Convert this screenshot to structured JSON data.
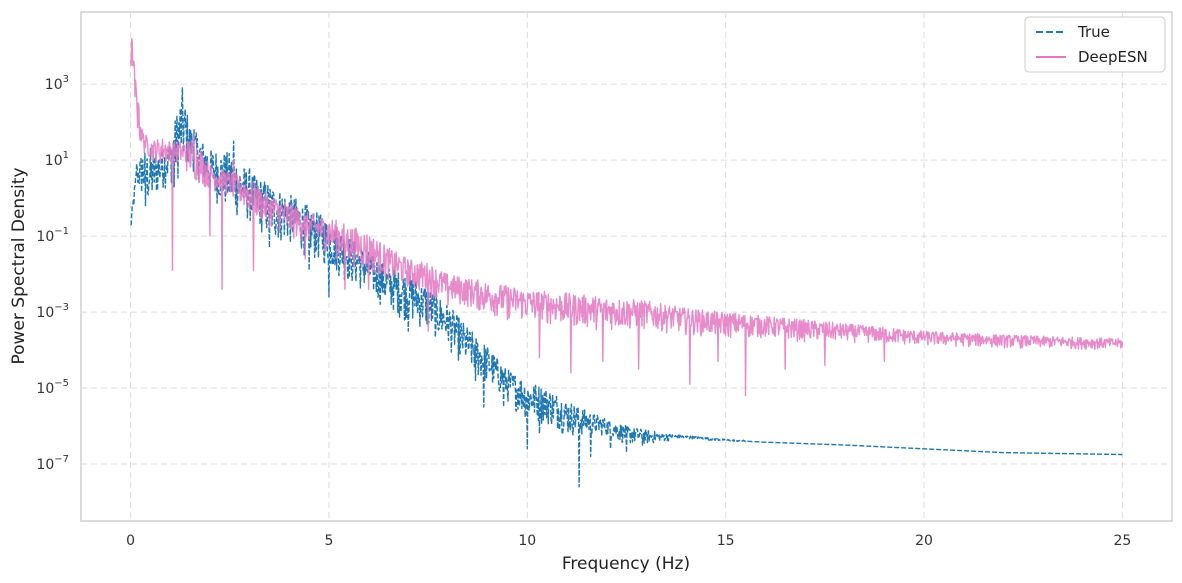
{
  "chart_data": {
    "type": "line",
    "title": "",
    "xlabel": "Frequency (Hz)",
    "ylabel": "Power Spectral Density",
    "xscale": "linear",
    "yscale": "log",
    "xlim": [
      -1.25,
      26.25
    ],
    "ylim_log10": [
      -8.5,
      4.9
    ],
    "grid": true,
    "legend_position": "top-right",
    "x_ticks": [
      0,
      5,
      10,
      15,
      20,
      25
    ],
    "x_tick_labels": [
      "0",
      "5",
      "10",
      "15",
      "20",
      "25"
    ],
    "y_ticks_log10": [
      3,
      1,
      -1,
      -3,
      -5,
      -7
    ],
    "y_tick_labels": [
      {
        "base": "10",
        "exp": "3"
      },
      {
        "base": "10",
        "exp": "1"
      },
      {
        "base": "10",
        "exp": "−1"
      },
      {
        "base": "10",
        "exp": "−3"
      },
      {
        "base": "10",
        "exp": "−5"
      },
      {
        "base": "10",
        "exp": "−7"
      }
    ],
    "series": [
      {
        "name": "True",
        "color": "#1f77b4",
        "style": "dashed",
        "envelope": {
          "x": [
            0.0,
            0.15,
            0.3,
            0.5,
            0.8,
            1.0,
            1.3,
            1.5,
            2.0,
            2.5,
            3.0,
            3.5,
            4.0,
            4.5,
            5.0,
            5.5,
            6.0,
            6.5,
            7.0,
            7.5,
            8.0,
            8.5,
            9.0,
            9.5,
            10.0,
            10.5,
            11.0,
            11.5,
            12.0,
            12.5,
            13.0,
            13.5,
            14.0,
            15.0,
            16.0,
            18.0,
            20.0,
            22.0,
            25.0
          ],
          "log10_upper": [
            -0.6,
            0.8,
            1.3,
            1.2,
            1.3,
            1.5,
            2.9,
            1.9,
            1.3,
            1.2,
            0.7,
            0.4,
            0.1,
            -0.2,
            -0.6,
            -1.0,
            -1.4,
            -1.8,
            -2.0,
            -2.3,
            -2.8,
            -3.4,
            -3.9,
            -4.5,
            -4.8,
            -5.0,
            -5.3,
            -5.6,
            -5.8,
            -6.0,
            -6.1,
            -6.2,
            -6.25,
            -6.35,
            -6.4,
            -6.5,
            -6.6,
            -6.7,
            -6.75
          ],
          "log10_lower": [
            -1.0,
            0.3,
            -0.2,
            -0.4,
            0.2,
            0.3,
            0.5,
            0.8,
            0.0,
            -0.5,
            -0.7,
            -1.2,
            -1.3,
            -1.6,
            -1.9,
            -2.3,
            -2.6,
            -3.0,
            -3.3,
            -3.6,
            -4.0,
            -4.6,
            -5.0,
            -5.4,
            -5.9,
            -6.0,
            -6.3,
            -6.3,
            -6.3,
            -6.5,
            -6.5,
            -6.4,
            -6.35,
            -6.4,
            -6.45,
            -6.5,
            -6.6,
            -6.7,
            -6.75
          ]
        },
        "dips": [
          [
            0.38,
            -0.2
          ],
          [
            1.1,
            0.3
          ],
          [
            3.5,
            -1.3
          ],
          [
            4.5,
            -1.9
          ],
          [
            5.0,
            -2.6
          ],
          [
            6.8,
            -3.0
          ],
          [
            7.0,
            -3.5
          ],
          [
            7.7,
            -3.4
          ],
          [
            8.3,
            -4.1
          ],
          [
            8.7,
            -4.8
          ],
          [
            8.9,
            -5.5
          ],
          [
            9.4,
            -5.5
          ],
          [
            10.0,
            -6.6
          ],
          [
            10.3,
            -6.2
          ],
          [
            10.8,
            -6.1
          ],
          [
            11.3,
            -7.6
          ],
          [
            11.6,
            -6.8
          ],
          [
            12.1,
            -6.6
          ],
          [
            12.5,
            -6.7
          ],
          [
            12.9,
            -6.5
          ]
        ],
        "peaks": [
          [
            0.15,
            0.9
          ],
          [
            0.5,
            1.3
          ],
          [
            1.3,
            2.9
          ],
          [
            1.6,
            1.8
          ],
          [
            2.6,
            1.5
          ],
          [
            3.0,
            0.8
          ]
        ]
      },
      {
        "name": "DeepESN",
        "color": "#e377c2",
        "style": "solid",
        "envelope": {
          "x": [
            0.0,
            0.05,
            0.1,
            0.2,
            0.3,
            0.5,
            0.8,
            1.0,
            1.3,
            1.6,
            2.0,
            2.5,
            3.0,
            3.5,
            4.0,
            4.5,
            5.0,
            5.5,
            6.0,
            6.5,
            7.0,
            7.5,
            8.0,
            8.5,
            9.0,
            9.5,
            10.0,
            11.0,
            12.0,
            13.0,
            14.0,
            15.0,
            16.0,
            17.0,
            18.0,
            20.0,
            22.0,
            25.0
          ],
          "log10_upper": [
            4.0,
            4.2,
            3.4,
            2.5,
            1.8,
            1.5,
            1.6,
            1.5,
            1.5,
            1.6,
            0.9,
            0.7,
            0.5,
            0.1,
            -0.1,
            -0.4,
            -0.5,
            -0.7,
            -0.9,
            -1.3,
            -1.6,
            -1.7,
            -2.0,
            -2.1,
            -2.2,
            -2.3,
            -2.4,
            -2.5,
            -2.6,
            -2.7,
            -2.9,
            -3.0,
            -3.1,
            -3.2,
            -3.3,
            -3.5,
            -3.6,
            -3.7
          ],
          "log10_lower": [
            3.2,
            3.5,
            2.3,
            1.5,
            1.2,
            1.0,
            0.8,
            0.9,
            0.8,
            0.4,
            0.2,
            0.0,
            -0.5,
            -0.8,
            -1.1,
            -1.2,
            -1.5,
            -1.8,
            -2.0,
            -2.2,
            -2.4,
            -2.6,
            -2.8,
            -2.9,
            -3.1,
            -3.2,
            -3.3,
            -3.4,
            -3.5,
            -3.5,
            -3.6,
            -3.7,
            -3.7,
            -3.8,
            -3.8,
            -3.9,
            -3.95,
            -4.0
          ]
        },
        "dips": [
          [
            1.05,
            -1.9
          ],
          [
            2.3,
            -2.4
          ],
          [
            2.0,
            -1.0
          ],
          [
            3.1,
            -1.9
          ],
          [
            4.4,
            -1.6
          ],
          [
            5.4,
            -2.4
          ],
          [
            6.0,
            -2.4
          ],
          [
            7.5,
            -3.5
          ],
          [
            8.0,
            -2.8
          ],
          [
            9.5,
            -3.2
          ],
          [
            10.3,
            -4.2
          ],
          [
            11.1,
            -4.6
          ],
          [
            11.9,
            -4.3
          ],
          [
            12.8,
            -4.5
          ],
          [
            14.1,
            -4.9
          ],
          [
            14.8,
            -4.3
          ],
          [
            15.5,
            -5.2
          ],
          [
            16.5,
            -4.5
          ],
          [
            17.5,
            -4.4
          ],
          [
            19.0,
            -4.3
          ]
        ],
        "peaks": [
          [
            0.03,
            4.2
          ],
          [
            0.2,
            2.5
          ],
          [
            1.6,
            1.7
          ],
          [
            2.6,
            1.0
          ]
        ]
      }
    ]
  }
}
